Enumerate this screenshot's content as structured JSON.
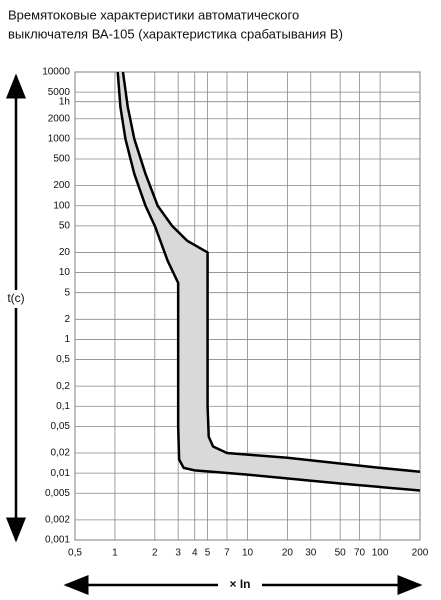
{
  "chart_data": {
    "type": "line",
    "title_lines": [
      "Времятоковые характеристики автоматического",
      "выключателя ВА-105 (характеристика срабатывания В)"
    ],
    "y_label": "t(c)",
    "x_label": "× In",
    "log_x": true,
    "log_y": true,
    "grid": true,
    "fill_color": "#d9d9d9",
    "line_color": "#000000",
    "xlim": [
      0.5,
      200
    ],
    "ylim": [
      0.001,
      10000
    ],
    "xticks": [
      {
        "value": 0.5,
        "label": "0,5"
      },
      1,
      2,
      3,
      4,
      5,
      7,
      10,
      20,
      30,
      50,
      70,
      100,
      200
    ],
    "yticks": [
      10000,
      5000,
      {
        "value": 3600,
        "label": "1h"
      },
      2000,
      1000,
      500,
      200,
      100,
      50,
      20,
      10,
      5,
      2,
      1,
      {
        "value": 0.5,
        "label": "0,5"
      },
      {
        "value": 0.2,
        "label": "0,2"
      },
      {
        "value": 0.1,
        "label": "0,1"
      },
      {
        "value": 0.05,
        "label": "0,05"
      },
      {
        "value": 0.02,
        "label": "0,02"
      },
      {
        "value": 0.01,
        "label": "0,01"
      },
      {
        "value": 0.005,
        "label": "0,005"
      },
      {
        "value": 0.002,
        "label": "0,002"
      },
      {
        "value": 0.001,
        "label": "0,001"
      }
    ],
    "series": [
      {
        "x": [
          1.05,
          1.1,
          1.2,
          1.4,
          1.7,
          2,
          2.5,
          3,
          3,
          3.05,
          3.3,
          4,
          10,
          50,
          200
        ],
        "values": [
          10000,
          3000,
          1000,
          300,
          100,
          50,
          15,
          7,
          0.05,
          0.016,
          0.012,
          0.011,
          0.0095,
          0.007,
          0.0055
        ]
      },
      {
        "x": [
          1.15,
          1.25,
          1.4,
          1.7,
          2.1,
          2.7,
          3.5,
          5,
          5,
          5.1,
          5.5,
          7,
          20,
          100,
          200
        ],
        "values": [
          10000,
          3000,
          1000,
          300,
          100,
          50,
          30,
          20,
          0.1,
          0.035,
          0.025,
          0.02,
          0.017,
          0.012,
          0.0105
        ]
      }
    ]
  }
}
